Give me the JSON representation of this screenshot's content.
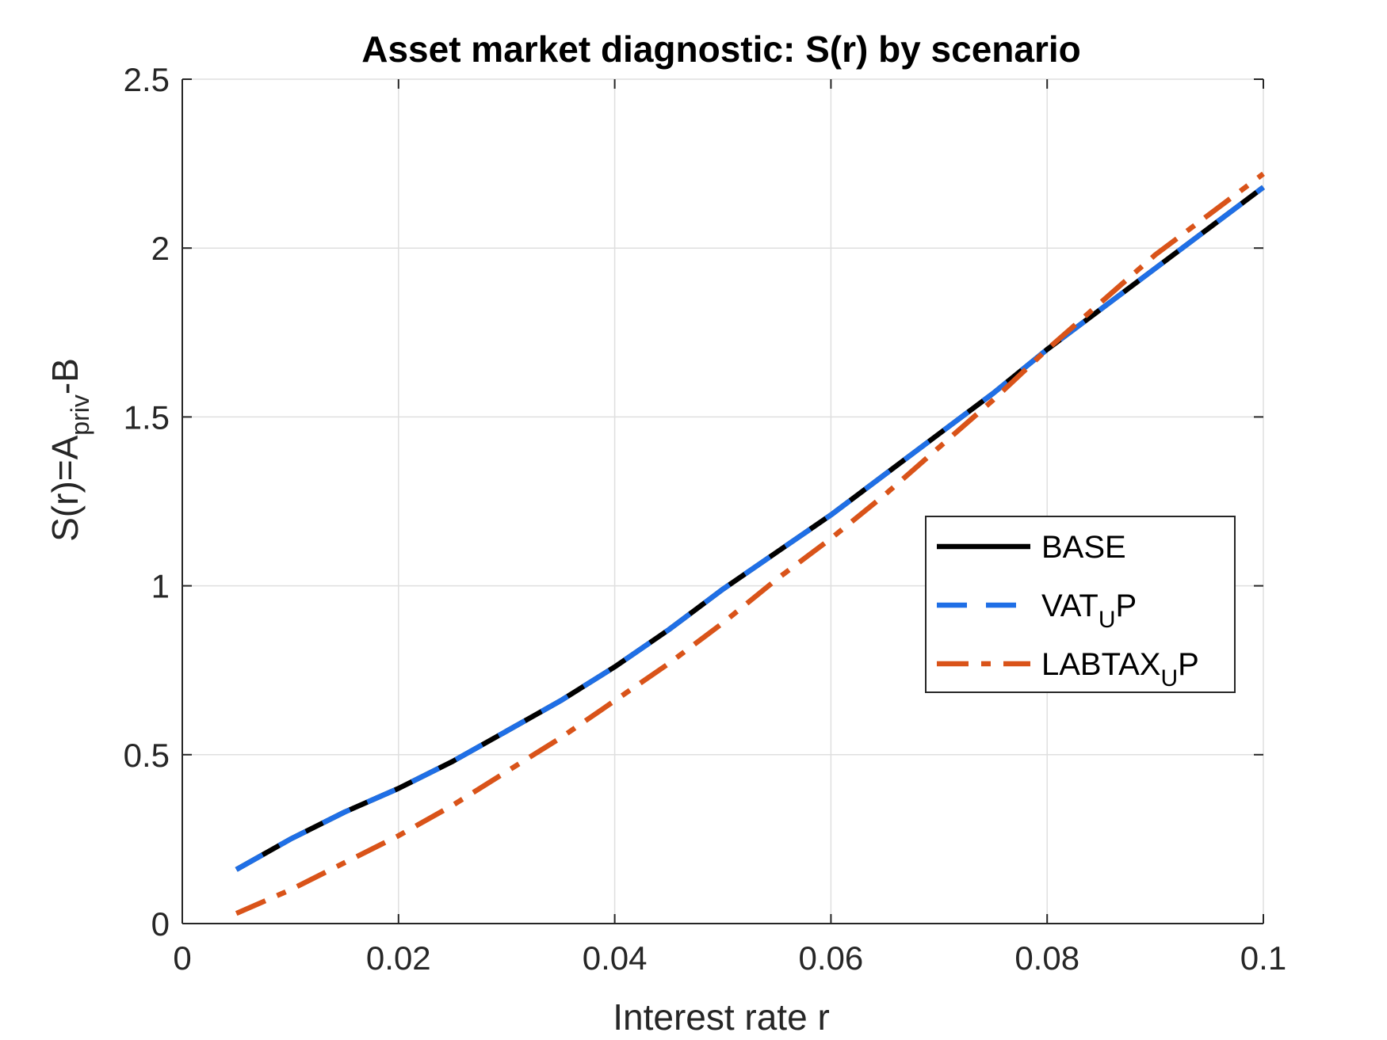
{
  "chart_data": {
    "type": "line",
    "title": "Asset market diagnostic: S(r) by scenario",
    "xlabel": "Interest rate r",
    "ylabel": {
      "main": "S(r)=A",
      "sub": "priv",
      "tail": "-B"
    },
    "xlim": [
      0,
      0.1
    ],
    "ylim": [
      0,
      2.5
    ],
    "xticks": [
      0,
      0.02,
      0.04,
      0.06,
      0.08,
      0.1
    ],
    "xtick_labels": [
      "0",
      "0.02",
      "0.04",
      "0.06",
      "0.08",
      "0.1"
    ],
    "yticks": [
      0,
      0.5,
      1,
      1.5,
      2,
      2.5
    ],
    "ytick_labels": [
      "0",
      "0.5",
      "1",
      "1.5",
      "2",
      "2.5"
    ],
    "grid": true,
    "legend_position": "right",
    "series": [
      {
        "name": {
          "main": "BASE",
          "sub": "",
          "tail": ""
        },
        "color": "#000000",
        "style": "solid",
        "x": [
          0.005,
          0.01,
          0.015,
          0.02,
          0.025,
          0.03,
          0.035,
          0.04,
          0.045,
          0.05,
          0.055,
          0.06,
          0.065,
          0.07,
          0.075,
          0.08,
          0.085,
          0.09,
          0.095,
          0.1
        ],
        "y": [
          0.16,
          0.25,
          0.33,
          0.4,
          0.48,
          0.57,
          0.66,
          0.76,
          0.87,
          0.99,
          1.1,
          1.21,
          1.33,
          1.45,
          1.57,
          1.7,
          1.82,
          1.94,
          2.06,
          2.18
        ]
      },
      {
        "name": {
          "main": "VAT",
          "sub": "U",
          "tail": "P"
        },
        "color": "#1f6fe6",
        "style": "dashed",
        "x": [
          0.005,
          0.01,
          0.015,
          0.02,
          0.025,
          0.03,
          0.035,
          0.04,
          0.045,
          0.05,
          0.055,
          0.06,
          0.065,
          0.07,
          0.075,
          0.08,
          0.085,
          0.09,
          0.095,
          0.1
        ],
        "y": [
          0.16,
          0.25,
          0.33,
          0.4,
          0.48,
          0.57,
          0.66,
          0.76,
          0.87,
          0.99,
          1.1,
          1.21,
          1.33,
          1.45,
          1.57,
          1.7,
          1.82,
          1.94,
          2.06,
          2.18
        ]
      },
      {
        "name": {
          "main": "LABTAX",
          "sub": "U",
          "tail": "P"
        },
        "color": "#d95319",
        "style": "dashdot",
        "x": [
          0.005,
          0.01,
          0.015,
          0.02,
          0.025,
          0.03,
          0.035,
          0.04,
          0.045,
          0.05,
          0.055,
          0.06,
          0.065,
          0.07,
          0.075,
          0.08,
          0.085,
          0.09,
          0.095,
          0.1
        ],
        "y": [
          0.03,
          0.1,
          0.18,
          0.26,
          0.35,
          0.45,
          0.55,
          0.66,
          0.77,
          0.89,
          1.02,
          1.14,
          1.27,
          1.41,
          1.55,
          1.7,
          1.84,
          1.98,
          2.1,
          2.22
        ]
      }
    ]
  }
}
